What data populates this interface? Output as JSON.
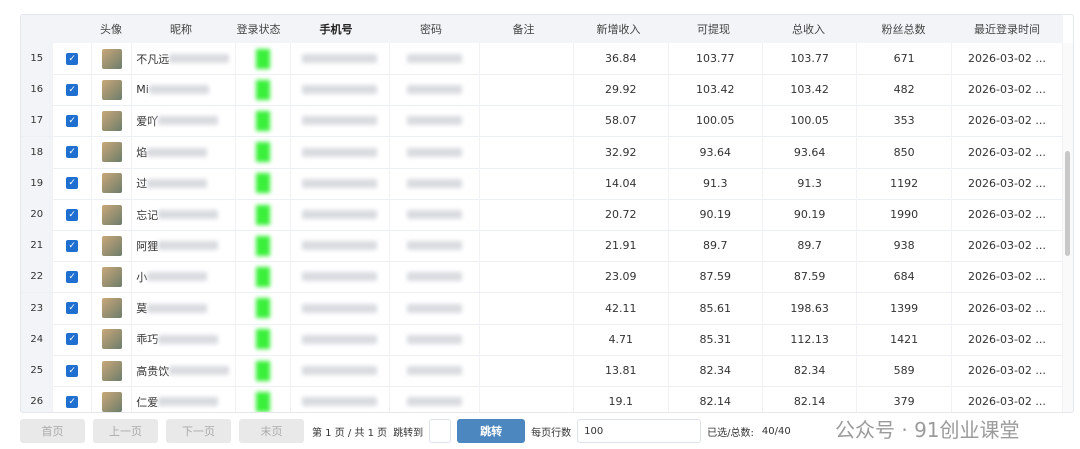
{
  "columns": [
    "头像",
    "昵称",
    "登录状态",
    "手机号",
    "密码",
    "备注",
    "新增收入",
    "可提现",
    "总收入",
    "粉丝总数",
    "最近登录时间"
  ],
  "rows": [
    {
      "no": "15",
      "nick": "不凡远",
      "new": "36.84",
      "avail": "103.77",
      "total": "103.77",
      "fans": "671",
      "login": "2026-03-02 ..."
    },
    {
      "no": "16",
      "nick": "Mi",
      "new": "29.92",
      "avail": "103.42",
      "total": "103.42",
      "fans": "482",
      "login": "2026-03-02 ..."
    },
    {
      "no": "17",
      "nick": "爱吖",
      "new": "58.07",
      "avail": "100.05",
      "total": "100.05",
      "fans": "353",
      "login": "2026-03-02 ..."
    },
    {
      "no": "18",
      "nick": "焰",
      "new": "32.92",
      "avail": "93.64",
      "total": "93.64",
      "fans": "850",
      "login": "2026-03-02 ..."
    },
    {
      "no": "19",
      "nick": "过",
      "new": "14.04",
      "avail": "91.3",
      "total": "91.3",
      "fans": "1192",
      "login": "2026-03-02 ..."
    },
    {
      "no": "20",
      "nick": "忘记",
      "new": "20.72",
      "avail": "90.19",
      "total": "90.19",
      "fans": "1990",
      "login": "2026-03-02 ..."
    },
    {
      "no": "21",
      "nick": "阿狸",
      "new": "21.91",
      "avail": "89.7",
      "total": "89.7",
      "fans": "938",
      "login": "2026-03-02 ..."
    },
    {
      "no": "22",
      "nick": "小",
      "new": "23.09",
      "avail": "87.59",
      "total": "87.59",
      "fans": "684",
      "login": "2026-03-02 ..."
    },
    {
      "no": "23",
      "nick": "莫",
      "new": "42.11",
      "avail": "85.61",
      "total": "198.63",
      "fans": "1399",
      "login": "2026-03-02 ..."
    },
    {
      "no": "24",
      "nick": "乖巧",
      "new": "4.71",
      "avail": "85.31",
      "total": "112.13",
      "fans": "1421",
      "login": "2026-03-02 ..."
    },
    {
      "no": "25",
      "nick": "高贵饮",
      "new": "13.81",
      "avail": "82.34",
      "total": "82.34",
      "fans": "589",
      "login": "2026-03-02 ..."
    },
    {
      "no": "26",
      "nick": "仁爱",
      "new": "19.1",
      "avail": "82.14",
      "total": "82.14",
      "fans": "379",
      "login": "2026-03-02 ..."
    }
  ],
  "footer": {
    "first": "首页",
    "prev": "上一页",
    "next": "下一页",
    "last": "末页",
    "page_info": "第 1 页 / 共 1 页",
    "jump_to": "跳转到",
    "jump_value": "",
    "jump_btn": "跳转",
    "rows_per_page_label": "每页行数",
    "rows_per_page": "100",
    "selected_label": "已选/总数:",
    "selected": "40/40"
  },
  "watermark": "公众号 · 91创业课堂"
}
